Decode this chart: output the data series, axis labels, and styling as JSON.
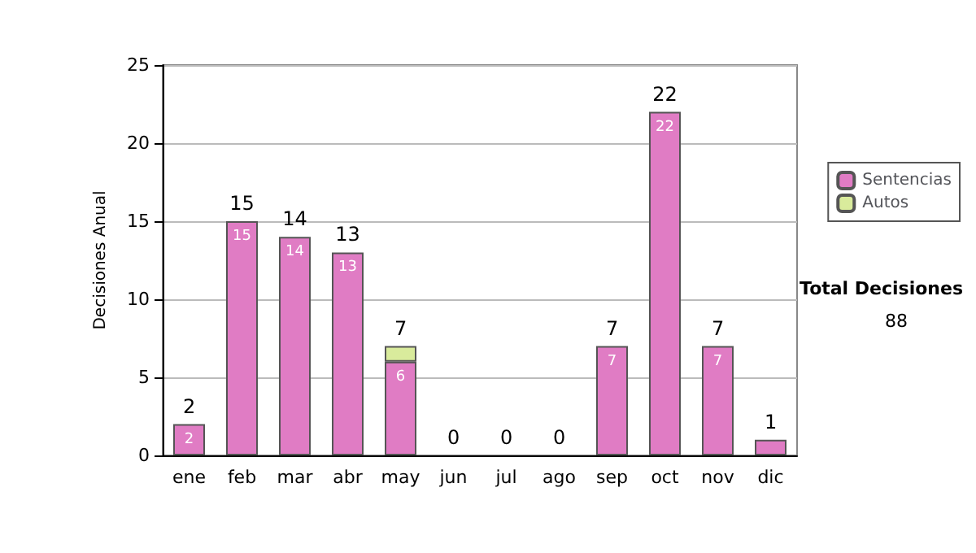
{
  "chart_data": {
    "type": "bar",
    "ylabel": "Decisiones Anual",
    "categories": [
      "ene",
      "feb",
      "mar",
      "abr",
      "may",
      "jun",
      "jul",
      "ago",
      "sep",
      "oct",
      "nov",
      "dic"
    ],
    "series": [
      {
        "name": "Sentencias",
        "color": "#e07cc4",
        "values": [
          2,
          15,
          14,
          13,
          6,
          0,
          0,
          0,
          7,
          22,
          7,
          1
        ],
        "value_labels": [
          "2",
          "15",
          "14",
          "13",
          "6",
          null,
          null,
          null,
          "7",
          "22",
          "7",
          null
        ]
      },
      {
        "name": "Autos",
        "color": "#d9eb9c",
        "values": [
          0,
          0,
          0,
          0,
          1,
          0,
          0,
          0,
          0,
          0,
          0,
          0
        ]
      }
    ],
    "stacked": true,
    "totals": [
      "2",
      "15",
      "14",
      "13",
      "7",
      "0",
      "0",
      "0",
      "7",
      "22",
      "7",
      "1"
    ],
    "ylim": [
      0,
      25
    ],
    "yticks": [
      0,
      5,
      10,
      15,
      20,
      25
    ],
    "grid": "y",
    "legend": "right",
    "annotations": [
      "Total Decisiones",
      "88"
    ]
  }
}
